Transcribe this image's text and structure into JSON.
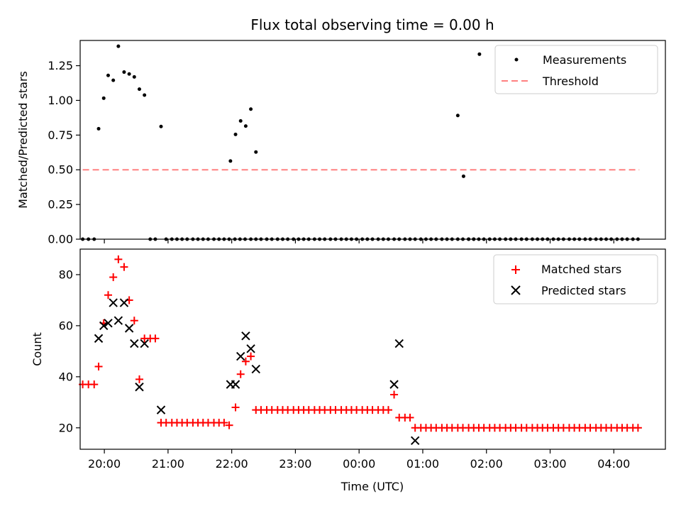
{
  "title": "Flux total observing time = 0.00 h",
  "chart_data": [
    {
      "type": "scatter",
      "ylabel": "Matched/Predicted stars",
      "ylim": [
        0,
        1.4318
      ],
      "yticks": [
        0.0,
        0.25,
        0.5,
        0.75,
        1.0,
        1.25
      ],
      "ytick_labels": [
        "0.00",
        "0.25",
        "0.50",
        "0.75",
        "1.00",
        "1.25"
      ],
      "xlim": [
        -0.38,
        8.81
      ],
      "legend_position": "top-right",
      "legend": [
        "Measurements",
        "Threshold"
      ],
      "threshold": {
        "y": 0.5,
        "x": [
          -0.34,
          8.4
        ],
        "color": "#ff8080"
      },
      "points": [
        [
          -0.34,
          0.0
        ],
        [
          -0.25,
          0.0
        ],
        [
          -0.16,
          0.0
        ],
        [
          -0.09,
          0.796
        ],
        [
          -0.01,
          1.016
        ],
        [
          0.06,
          1.18
        ],
        [
          0.14,
          1.145
        ],
        [
          0.22,
          1.39
        ],
        [
          0.31,
          1.204
        ],
        [
          0.39,
          1.19
        ],
        [
          0.47,
          1.169
        ],
        [
          0.55,
          1.081
        ],
        [
          0.63,
          1.038
        ],
        [
          0.72,
          0.0
        ],
        [
          0.8,
          0.0
        ],
        [
          0.89,
          0.812
        ],
        [
          0.97,
          0.0
        ],
        [
          1.06,
          0.0
        ],
        [
          1.14,
          0.0
        ],
        [
          1.22,
          0.0
        ],
        [
          1.3,
          0.0
        ],
        [
          1.39,
          0.0
        ],
        [
          1.47,
          0.0
        ],
        [
          1.55,
          0.0
        ],
        [
          1.63,
          0.0
        ],
        [
          1.72,
          0.0
        ],
        [
          1.8,
          0.0
        ],
        [
          1.88,
          0.0
        ],
        [
          1.96,
          0.0
        ],
        [
          2.05,
          0.0
        ],
        [
          2.13,
          0.0
        ],
        [
          2.21,
          0.0
        ],
        [
          2.3,
          0.0
        ],
        [
          2.38,
          0.0
        ],
        [
          2.46,
          0.0
        ],
        [
          2.55,
          0.0
        ],
        [
          2.63,
          0.0
        ],
        [
          2.72,
          0.0
        ],
        [
          2.8,
          0.0
        ],
        [
          2.88,
          0.0
        ],
        [
          2.97,
          0.0
        ],
        [
          3.05,
          0.0
        ],
        [
          3.13,
          0.0
        ],
        [
          3.21,
          0.0
        ],
        [
          3.3,
          0.0
        ],
        [
          3.38,
          0.0
        ],
        [
          3.46,
          0.0
        ],
        [
          3.55,
          0.0
        ],
        [
          3.63,
          0.0
        ],
        [
          3.72,
          0.0
        ],
        [
          3.8,
          0.0
        ],
        [
          3.88,
          0.0
        ],
        [
          3.96,
          0.0
        ],
        [
          4.05,
          0.0
        ],
        [
          4.13,
          0.0
        ],
        [
          4.21,
          0.0
        ],
        [
          4.3,
          0.0
        ],
        [
          4.38,
          0.0
        ],
        [
          4.46,
          0.0
        ],
        [
          4.55,
          0.0
        ],
        [
          4.63,
          0.0
        ],
        [
          4.72,
          0.0
        ],
        [
          4.8,
          0.0
        ],
        [
          4.88,
          0.0
        ],
        [
          4.97,
          0.0
        ],
        [
          5.05,
          0.0
        ],
        [
          5.13,
          0.0
        ],
        [
          5.21,
          0.0
        ],
        [
          5.3,
          0.0
        ],
        [
          5.38,
          0.0
        ],
        [
          5.46,
          0.0
        ],
        [
          5.55,
          0.0
        ],
        [
          5.63,
          0.0
        ],
        [
          5.72,
          0.0
        ],
        [
          5.8,
          0.0
        ],
        [
          5.88,
          0.0
        ],
        [
          5.96,
          0.0
        ],
        [
          6.05,
          0.0
        ],
        [
          6.13,
          0.0
        ],
        [
          6.21,
          0.0
        ],
        [
          6.3,
          0.0
        ],
        [
          6.38,
          0.0
        ],
        [
          6.46,
          0.0
        ],
        [
          6.55,
          0.0
        ],
        [
          6.63,
          0.0
        ],
        [
          6.72,
          0.0
        ],
        [
          6.8,
          0.0
        ],
        [
          6.88,
          0.0
        ],
        [
          6.96,
          0.0
        ],
        [
          7.05,
          0.0
        ],
        [
          7.13,
          0.0
        ],
        [
          7.21,
          0.0
        ],
        [
          7.3,
          0.0
        ],
        [
          7.38,
          0.0
        ],
        [
          7.46,
          0.0
        ],
        [
          7.55,
          0.0
        ],
        [
          7.63,
          0.0
        ],
        [
          7.72,
          0.0
        ],
        [
          7.8,
          0.0
        ],
        [
          7.88,
          0.0
        ],
        [
          7.96,
          0.0
        ],
        [
          8.05,
          0.0
        ],
        [
          8.13,
          0.0
        ],
        [
          8.21,
          0.0
        ],
        [
          8.3,
          0.0
        ],
        [
          8.38,
          0.0
        ],
        [
          1.98,
          0.563
        ],
        [
          2.06,
          0.755
        ],
        [
          2.14,
          0.852
        ],
        [
          2.22,
          0.815
        ],
        [
          2.3,
          0.937
        ],
        [
          2.38,
          0.628
        ],
        [
          5.55,
          0.891
        ],
        [
          5.64,
          0.453
        ],
        [
          5.72,
          0.0
        ],
        [
          5.8,
          0.0
        ],
        [
          5.89,
          1.333
        ]
      ]
    },
    {
      "type": "scatter",
      "xlabel": "Time (UTC)",
      "ylabel": "Count",
      "ylim": [
        11.6,
        90.0
      ],
      "yticks": [
        20,
        40,
        60,
        80
      ],
      "ytick_labels": [
        "20",
        "40",
        "60",
        "80"
      ],
      "xlim": [
        -0.38,
        8.81
      ],
      "xticks": [
        0,
        1,
        2,
        3,
        4,
        5,
        6,
        7,
        8
      ],
      "xtick_labels": [
        "20:00",
        "21:00",
        "22:00",
        "23:00",
        "00:00",
        "01:00",
        "02:00",
        "03:00",
        "04:00"
      ],
      "legend_position": "top-right",
      "legend": [
        "Matched stars",
        "Predicted stars"
      ],
      "matched": [
        [
          -0.34,
          37
        ],
        [
          -0.25,
          37
        ],
        [
          -0.16,
          37
        ],
        [
          -0.09,
          44
        ],
        [
          -0.01,
          61
        ],
        [
          0.06,
          72
        ],
        [
          0.14,
          79
        ],
        [
          0.22,
          86
        ],
        [
          0.31,
          83
        ],
        [
          0.39,
          70
        ],
        [
          0.47,
          62
        ],
        [
          0.55,
          39
        ],
        [
          0.63,
          55
        ],
        [
          0.72,
          55
        ],
        [
          0.8,
          55
        ],
        [
          0.89,
          22
        ],
        [
          0.97,
          22
        ],
        [
          1.06,
          22
        ],
        [
          1.14,
          22
        ],
        [
          1.22,
          22
        ],
        [
          1.3,
          22
        ],
        [
          1.39,
          22
        ],
        [
          1.47,
          22
        ],
        [
          1.55,
          22
        ],
        [
          1.63,
          22
        ],
        [
          1.72,
          22
        ],
        [
          1.8,
          22
        ],
        [
          1.88,
          22
        ],
        [
          1.96,
          21
        ],
        [
          2.06,
          28
        ],
        [
          2.14,
          41
        ],
        [
          2.22,
          46
        ],
        [
          2.3,
          48
        ],
        [
          2.38,
          27
        ],
        [
          2.46,
          27
        ],
        [
          2.55,
          27
        ],
        [
          2.63,
          27
        ],
        [
          2.72,
          27
        ],
        [
          2.8,
          27
        ],
        [
          2.88,
          27
        ],
        [
          2.97,
          27
        ],
        [
          3.05,
          27
        ],
        [
          3.13,
          27
        ],
        [
          3.21,
          27
        ],
        [
          3.3,
          27
        ],
        [
          3.38,
          27
        ],
        [
          3.46,
          27
        ],
        [
          3.55,
          27
        ],
        [
          3.63,
          27
        ],
        [
          3.72,
          27
        ],
        [
          3.8,
          27
        ],
        [
          3.88,
          27
        ],
        [
          3.96,
          27
        ],
        [
          4.05,
          27
        ],
        [
          4.13,
          27
        ],
        [
          4.21,
          27
        ],
        [
          4.3,
          27
        ],
        [
          4.38,
          27
        ],
        [
          4.46,
          27
        ],
        [
          4.55,
          33
        ],
        [
          4.63,
          24
        ],
        [
          4.72,
          24
        ],
        [
          4.8,
          24
        ],
        [
          4.88,
          20
        ],
        [
          4.97,
          20
        ],
        [
          5.05,
          20
        ],
        [
          5.13,
          20
        ],
        [
          5.21,
          20
        ],
        [
          5.3,
          20
        ],
        [
          5.38,
          20
        ],
        [
          5.46,
          20
        ],
        [
          5.55,
          20
        ],
        [
          5.63,
          20
        ],
        [
          5.72,
          20
        ],
        [
          5.8,
          20
        ],
        [
          5.88,
          20
        ],
        [
          5.96,
          20
        ],
        [
          6.05,
          20
        ],
        [
          6.13,
          20
        ],
        [
          6.21,
          20
        ],
        [
          6.3,
          20
        ],
        [
          6.38,
          20
        ],
        [
          6.46,
          20
        ],
        [
          6.55,
          20
        ],
        [
          6.63,
          20
        ],
        [
          6.72,
          20
        ],
        [
          6.8,
          20
        ],
        [
          6.88,
          20
        ],
        [
          6.96,
          20
        ],
        [
          7.05,
          20
        ],
        [
          7.13,
          20
        ],
        [
          7.21,
          20
        ],
        [
          7.3,
          20
        ],
        [
          7.38,
          20
        ],
        [
          7.46,
          20
        ],
        [
          7.55,
          20
        ],
        [
          7.63,
          20
        ],
        [
          7.72,
          20
        ],
        [
          7.8,
          20
        ],
        [
          7.88,
          20
        ],
        [
          7.96,
          20
        ],
        [
          8.05,
          20
        ],
        [
          8.13,
          20
        ],
        [
          8.21,
          20
        ],
        [
          8.3,
          20
        ],
        [
          8.38,
          20
        ]
      ],
      "predicted": [
        [
          -0.09,
          55
        ],
        [
          -0.01,
          60
        ],
        [
          0.06,
          61
        ],
        [
          0.14,
          69
        ],
        [
          0.22,
          62
        ],
        [
          0.31,
          69
        ],
        [
          0.39,
          59
        ],
        [
          0.47,
          53
        ],
        [
          0.55,
          36
        ],
        [
          0.63,
          53
        ],
        [
          0.89,
          27
        ],
        [
          1.98,
          37
        ],
        [
          2.06,
          37
        ],
        [
          2.14,
          48
        ],
        [
          2.22,
          56
        ],
        [
          2.3,
          51
        ],
        [
          2.38,
          43
        ],
        [
          4.55,
          37
        ],
        [
          4.63,
          53
        ],
        [
          4.88,
          15
        ]
      ]
    }
  ]
}
